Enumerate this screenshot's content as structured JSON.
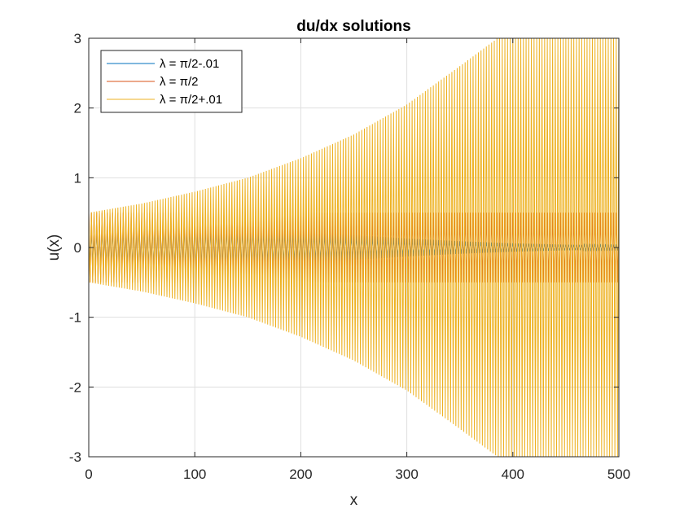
{
  "chart_data": {
    "type": "line",
    "title": "du/dx solutions",
    "xlabel": "x",
    "ylabel": "u(x)",
    "xlim": [
      0,
      500
    ],
    "ylim": [
      -3,
      3
    ],
    "xticks": [
      0,
      100,
      200,
      300,
      400,
      500
    ],
    "yticks": [
      -3,
      -2,
      -1,
      0,
      1,
      2,
      3
    ],
    "xtick_labels": [
      "0",
      "100",
      "200",
      "300",
      "400",
      "500"
    ],
    "ytick_labels": [
      "-3",
      "-2",
      "-1",
      "0",
      "1",
      "2",
      "3"
    ],
    "grid": true,
    "legend_position": "top-left",
    "oscillation_period": 2.5,
    "series": [
      {
        "name": "λ = π/2-.01",
        "color": "#0072BD",
        "envelope": [
          [
            0,
            0.25
          ],
          [
            50,
            0.35
          ],
          [
            80,
            0.36
          ],
          [
            150,
            0.3
          ],
          [
            200,
            0.24
          ],
          [
            250,
            0.18
          ],
          [
            300,
            0.13
          ],
          [
            350,
            0.09
          ],
          [
            400,
            0.06
          ],
          [
            450,
            0.04
          ],
          [
            500,
            0.03
          ]
        ]
      },
      {
        "name": "λ = π/2",
        "color": "#D95319",
        "envelope": [
          [
            0,
            0.5
          ],
          [
            500,
            0.5
          ]
        ]
      },
      {
        "name": "λ = π/2+.01",
        "color": "#EDB120",
        "envelope": [
          [
            0,
            0.5
          ],
          [
            50,
            0.63
          ],
          [
            100,
            0.8
          ],
          [
            150,
            1.0
          ],
          [
            200,
            1.28
          ],
          [
            250,
            1.62
          ],
          [
            300,
            2.05
          ],
          [
            350,
            2.6
          ],
          [
            390,
            3.05
          ],
          [
            500,
            3.05
          ]
        ],
        "clipped_above": 3
      }
    ]
  }
}
